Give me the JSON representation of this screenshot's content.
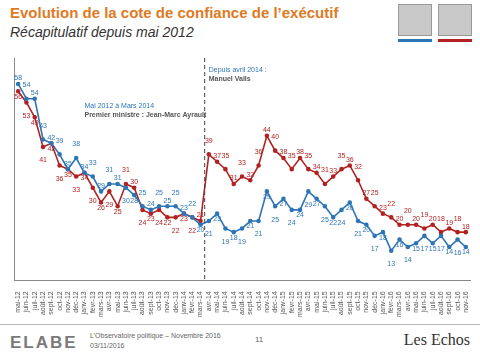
{
  "title": "Evolution de la cote de confiance de l’exécutif",
  "subtitle": "Récapitulatif depuis mai 2012",
  "chart_data": {
    "type": "line",
    "categories": [
      "mai-12",
      "juin-12",
      "juil-12",
      "août-12",
      "sept-12",
      "oct-12",
      "nov-12",
      "déc-12",
      "janv-13",
      "févr-13",
      "mars-13",
      "avr-13",
      "mai-13",
      "juin-13",
      "juil-13",
      "août-13",
      "sept-13",
      "oct-13",
      "nov-13",
      "déc-13",
      "janv-14",
      "févr-14",
      "mars-14",
      "avr-14",
      "mai-14",
      "juin-14",
      "juil-14",
      "août-14",
      "sept-14",
      "oct-14",
      "nov-14",
      "déc-14",
      "janv-15",
      "févr-15",
      "mars-15",
      "avr-15",
      "mai-15",
      "juin-15",
      "juil-15",
      "août-15",
      "sept-15",
      "oct-15",
      "nov-15",
      "déc-15",
      "janv-16",
      "févr-16",
      "mars-16",
      "avr-16",
      "mai-16",
      "juin-16",
      "juil-16",
      "août-16",
      "sept-16",
      "oct-16",
      "nov-16"
    ],
    "series": [
      {
        "color": "#2e75b6",
        "marker": "circle",
        "values": [
          58,
          54,
          54,
          43,
          42,
          39,
          35,
          38,
          34,
          33,
          29,
          31,
          31,
          30,
          28,
          25,
          24,
          25,
          25,
          25,
          23,
          22,
          20,
          21,
          23,
          19,
          18,
          19,
          21,
          21,
          29,
          25,
          27,
          24,
          24,
          29,
          27,
          25,
          22,
          24,
          26,
          21,
          20,
          17,
          18,
          13,
          16,
          14,
          15,
          17,
          15,
          17,
          14,
          16,
          14
        ]
      },
      {
        "color": "#b22222",
        "marker": "circle",
        "values": [
          56,
          53,
          49,
          41,
          42,
          36,
          35,
          33,
          34,
          30,
          26,
          29,
          25,
          31,
          30,
          24,
          23,
          24,
          22,
          22,
          23,
          22,
          21,
          39,
          37,
          35,
          31,
          33,
          32,
          36,
          44,
          40,
          38,
          35,
          38,
          35,
          34,
          31,
          33,
          35,
          36,
          32,
          27,
          25,
          23,
          22,
          20,
          20,
          20,
          19,
          20,
          18,
          19,
          18,
          18
        ]
      }
    ],
    "ylim": [
      5,
      65
    ],
    "grid": false,
    "data_labels": true,
    "tick_labels": "x",
    "annotations": [
      {
        "from": "mai-12",
        "text": [
          "Mai 2012 à Mars 2014",
          "Premier ministre : Jean-Marc Ayrault"
        ]
      },
      {
        "from": "avr-14",
        "text": [
          "Depuis avril 2014 :",
          "Manuel Valls"
        ]
      }
    ]
  },
  "footer": {
    "logo": "ELABE",
    "lines": [
      "L’Observatoire politique – Novembre 2016",
      "03/11/2016"
    ],
    "page": "11",
    "source": "Les Echos"
  }
}
